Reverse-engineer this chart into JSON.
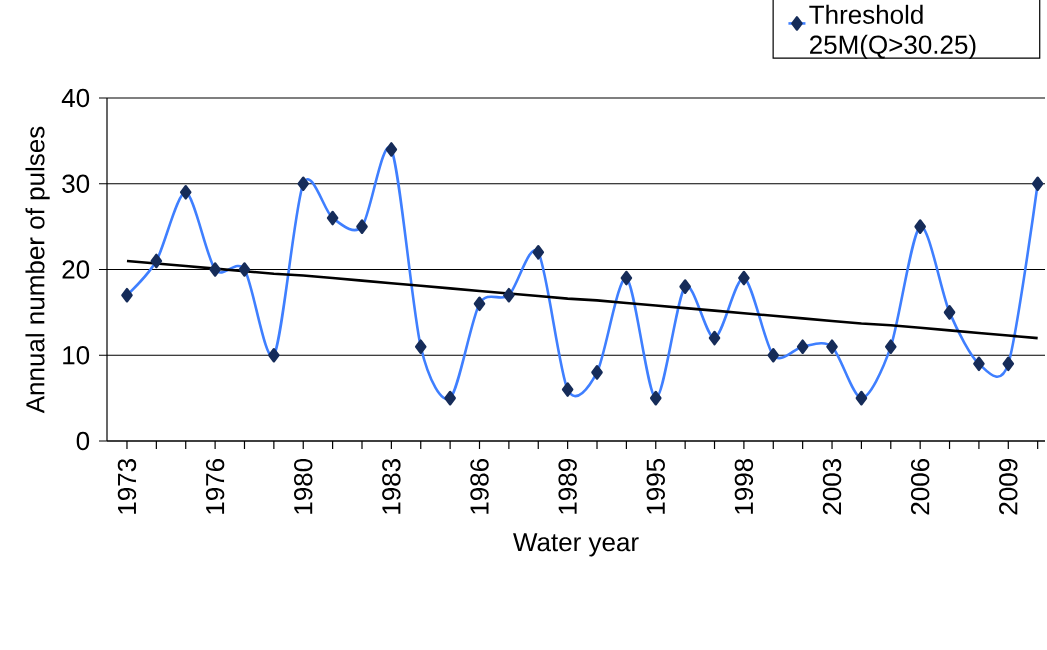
{
  "chart_data": {
    "type": "line",
    "xlabel": "Water year",
    "ylabel": "Annual number of pulses",
    "categories": [
      "1973",
      null,
      null,
      "1976",
      null,
      null,
      "1980",
      null,
      null,
      "1983",
      null,
      null,
      "1986",
      null,
      null,
      "1989",
      null,
      null,
      "1995",
      null,
      null,
      "1998",
      null,
      null,
      "2003",
      null,
      null,
      "2006",
      null,
      null,
      "2009",
      null
    ],
    "series": [
      {
        "name": "Threshold 25M(Q>30.25)",
        "color": "#3f7fff",
        "marker": "diamond",
        "values": [
          17,
          21,
          29,
          20,
          20,
          10,
          30,
          26,
          25,
          34,
          11,
          5,
          16,
          17,
          22,
          6,
          8,
          19,
          5,
          18,
          12,
          19,
          10,
          11,
          11,
          5,
          11,
          25,
          15,
          9,
          9,
          30
        ]
      },
      {
        "color": "#000000",
        "marker": "none",
        "values": [
          21,
          20.7,
          20.4,
          20.1,
          19.8,
          19.5,
          19.3,
          19.0,
          18.7,
          18.4,
          18.1,
          17.8,
          17.5,
          17.2,
          16.9,
          16.6,
          16.4,
          16.1,
          15.8,
          15.5,
          15.2,
          14.9,
          14.6,
          14.3,
          14.0,
          13.7,
          13.5,
          13.2,
          12.9,
          12.6,
          12.3,
          12.0
        ]
      }
    ],
    "ylim": [
      0,
      40
    ],
    "yticks": [
      0,
      10,
      20,
      30,
      40
    ],
    "grid": "y",
    "legend": "top right"
  }
}
